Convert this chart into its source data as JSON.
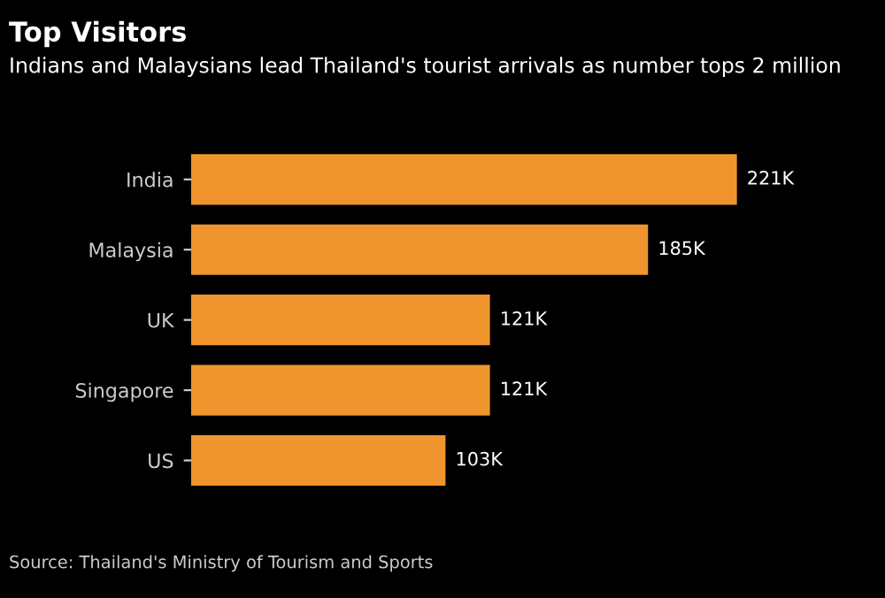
{
  "chart_data": {
    "type": "bar",
    "orientation": "horizontal",
    "title": "Top Visitors",
    "subtitle": "Indians and Malaysians lead Thailand's tourist arrivals as number tops 2 million",
    "categories": [
      "India",
      "Malaysia",
      "UK",
      "Singapore",
      "US"
    ],
    "values": [
      221,
      185,
      121,
      121,
      103
    ],
    "value_labels": [
      "221K",
      "185K",
      "121K",
      "121K",
      "103K"
    ],
    "color": "#f0952e",
    "annotations": [
      "Source: Thailand's Ministry of Tourism and Sports"
    ],
    "grid": false,
    "legend": false
  }
}
